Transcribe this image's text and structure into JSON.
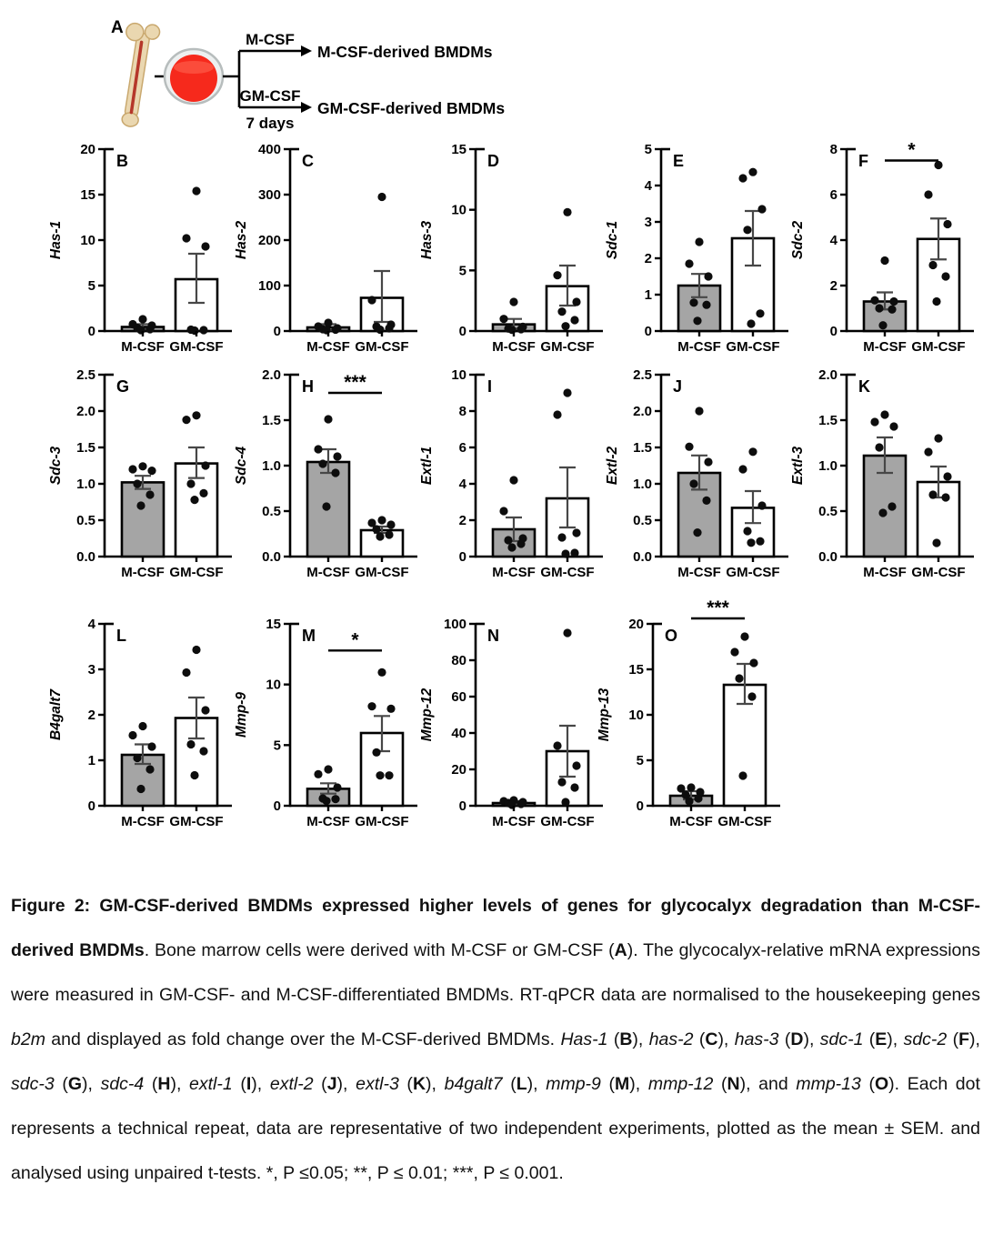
{
  "schematic": {
    "panel_label": "A",
    "arm1": {
      "factor": "M-CSF",
      "result": "M-CSF-derived BMDMs"
    },
    "arm2": {
      "factor": "GM-CSF",
      "duration": "7 days",
      "result": "GM-CSF-derived BMDMs"
    },
    "colors": {
      "medium_red": "#f6291c",
      "dish_rim": "#edf0f0",
      "bone_fill": "#ead7b0",
      "bone_stroke": "#c9a86e",
      "marrow_red": "#b5372a"
    }
  },
  "chart_style": {
    "bar_fill_mcsf": "#a5a5a5",
    "bar_fill_gmcsf": "#ffffff",
    "axis_color": "#000000",
    "error_color": "#474747",
    "dot_color": "#0d0d0d"
  },
  "categories": [
    "M-CSF",
    "GM-CSF"
  ],
  "chart_data": [
    {
      "panel": "B",
      "type": "bar-scatter",
      "ylabel": "Has-1",
      "ylim": [
        0,
        20
      ],
      "yticks": [
        "0",
        "5",
        "10",
        "15",
        "20"
      ],
      "series": [
        {
          "name": "M-CSF",
          "mean": 0.45,
          "sem": [
            0.2,
            0.75
          ],
          "points": [
            1.3,
            0.75,
            0.6,
            0.35,
            0.2,
            0.1
          ]
        },
        {
          "name": "GM-CSF",
          "mean": 5.7,
          "sem": [
            3.1,
            8.5
          ],
          "points": [
            15.4,
            10.2,
            9.3,
            0.15,
            0.1,
            0.05
          ]
        }
      ],
      "significance": null
    },
    {
      "panel": "C",
      "type": "bar-scatter",
      "ylabel": "Has-2",
      "ylim": [
        0,
        400
      ],
      "yticks": [
        "0",
        "100",
        "200",
        "300",
        "400"
      ],
      "series": [
        {
          "name": "M-CSF",
          "mean": 8,
          "sem": [
            2,
            15
          ],
          "points": [
            18,
            10,
            6,
            4,
            3,
            2
          ]
        },
        {
          "name": "GM-CSF",
          "mean": 73,
          "sem": [
            20,
            132
          ],
          "points": [
            295,
            68,
            14,
            10,
            6,
            3
          ]
        }
      ],
      "significance": null
    },
    {
      "panel": "D",
      "type": "bar-scatter",
      "ylabel": "Has-3",
      "ylim": [
        0,
        15
      ],
      "yticks": [
        "0",
        "5",
        "10",
        "15"
      ],
      "series": [
        {
          "name": "M-CSF",
          "mean": 0.55,
          "sem": [
            0.2,
            1.0
          ],
          "points": [
            2.4,
            1.0,
            0.35,
            0.2,
            0.15,
            0.1
          ]
        },
        {
          "name": "GM-CSF",
          "mean": 3.7,
          "sem": [
            2.1,
            5.4
          ],
          "points": [
            9.8,
            4.6,
            2.4,
            1.6,
            0.9,
            0.4
          ]
        }
      ],
      "significance": null
    },
    {
      "panel": "E",
      "type": "bar-scatter",
      "ylabel": "Sdc-1",
      "ylim": [
        0,
        5
      ],
      "yticks": [
        "0",
        "1",
        "2",
        "3",
        "4",
        "5"
      ],
      "series": [
        {
          "name": "M-CSF",
          "mean": 1.25,
          "sem": [
            0.93,
            1.57
          ],
          "points": [
            2.45,
            1.85,
            1.5,
            0.78,
            0.72,
            0.28
          ]
        },
        {
          "name": "GM-CSF",
          "mean": 2.55,
          "sem": [
            1.8,
            3.3
          ],
          "points": [
            4.37,
            4.2,
            3.35,
            2.78,
            0.48,
            0.2
          ]
        }
      ],
      "significance": null
    },
    {
      "panel": "F",
      "type": "bar-scatter",
      "ylabel": "Sdc-2",
      "ylim": [
        0,
        8
      ],
      "yticks": [
        "0",
        "2",
        "4",
        "6",
        "8"
      ],
      "series": [
        {
          "name": "M-CSF",
          "mean": 1.3,
          "sem": [
            0.95,
            1.7
          ],
          "points": [
            3.1,
            1.35,
            1.3,
            1.0,
            0.95,
            0.25
          ]
        },
        {
          "name": "GM-CSF",
          "mean": 4.05,
          "sem": [
            3.15,
            4.95
          ],
          "points": [
            7.3,
            6.0,
            4.7,
            2.9,
            2.4,
            1.3
          ]
        }
      ],
      "significance": {
        "label": "*",
        "y": 7.5
      }
    },
    {
      "panel": "G",
      "type": "bar-scatter",
      "ylabel": "Sdc-3",
      "ylim": [
        0,
        2.5
      ],
      "yticks": [
        "0.0",
        "0.5",
        "1.0",
        "1.5",
        "2.0",
        "2.5"
      ],
      "series": [
        {
          "name": "M-CSF",
          "mean": 1.02,
          "sem": [
            0.93,
            1.11
          ],
          "points": [
            1.24,
            1.2,
            1.18,
            1.0,
            0.85,
            0.7
          ]
        },
        {
          "name": "GM-CSF",
          "mean": 1.28,
          "sem": [
            1.08,
            1.5
          ],
          "points": [
            1.94,
            1.88,
            1.25,
            1.0,
            0.87,
            0.78
          ]
        }
      ],
      "significance": null
    },
    {
      "panel": "H",
      "type": "bar-scatter",
      "ylabel": "Sdc-4",
      "ylim": [
        0,
        2.0
      ],
      "yticks": [
        "0.0",
        "0.5",
        "1.0",
        "1.5",
        "2.0"
      ],
      "series": [
        {
          "name": "M-CSF",
          "mean": 1.04,
          "sem": [
            0.92,
            1.18
          ],
          "points": [
            1.51,
            1.18,
            1.1,
            1.02,
            0.92,
            0.55
          ]
        },
        {
          "name": "GM-CSF",
          "mean": 0.29,
          "sem": [
            0.26,
            0.33
          ],
          "points": [
            0.4,
            0.37,
            0.35,
            0.3,
            0.24,
            0.22
          ]
        }
      ],
      "significance": {
        "label": "***",
        "y": 1.8
      }
    },
    {
      "panel": "I",
      "type": "bar-scatter",
      "ylabel": "Extl-1",
      "ylim": [
        0,
        10
      ],
      "yticks": [
        "0",
        "2",
        "4",
        "6",
        "8",
        "10"
      ],
      "series": [
        {
          "name": "M-CSF",
          "mean": 1.5,
          "sem": [
            0.85,
            2.15
          ],
          "points": [
            4.2,
            2.5,
            1.0,
            0.9,
            0.7,
            0.5
          ]
        },
        {
          "name": "GM-CSF",
          "mean": 3.2,
          "sem": [
            1.6,
            4.9
          ],
          "points": [
            9.0,
            7.8,
            1.3,
            1.05,
            0.2,
            0.15
          ]
        }
      ],
      "significance": null
    },
    {
      "panel": "J",
      "type": "bar-scatter",
      "ylabel": "Extl-2",
      "ylim": [
        0,
        2.5
      ],
      "yticks": [
        "0.0",
        "0.5",
        "1.0",
        "1.5",
        "2.0",
        "2.5"
      ],
      "series": [
        {
          "name": "M-CSF",
          "mean": 1.15,
          "sem": [
            0.92,
            1.39
          ],
          "points": [
            2.0,
            1.51,
            1.3,
            1.0,
            0.77,
            0.33
          ]
        },
        {
          "name": "GM-CSF",
          "mean": 0.67,
          "sem": [
            0.46,
            0.9
          ],
          "points": [
            1.44,
            1.2,
            0.7,
            0.35,
            0.21,
            0.19
          ]
        }
      ],
      "significance": null
    },
    {
      "panel": "K",
      "type": "bar-scatter",
      "ylabel": "Extl-3",
      "ylim": [
        0,
        2.0
      ],
      "yticks": [
        "0.0",
        "0.5",
        "1.0",
        "1.5",
        "2.0"
      ],
      "series": [
        {
          "name": "M-CSF",
          "mean": 1.11,
          "sem": [
            0.92,
            1.31
          ],
          "points": [
            1.56,
            1.48,
            1.43,
            1.2,
            0.55,
            0.48
          ]
        },
        {
          "name": "GM-CSF",
          "mean": 0.82,
          "sem": [
            0.65,
            0.99
          ],
          "points": [
            1.3,
            1.15,
            0.88,
            0.68,
            0.65,
            0.15
          ]
        }
      ],
      "significance": null
    },
    {
      "panel": "L",
      "type": "bar-scatter",
      "ylabel": "B4galt7",
      "ylim": [
        0,
        4
      ],
      "yticks": [
        "0",
        "1",
        "2",
        "3",
        "4"
      ],
      "series": [
        {
          "name": "M-CSF",
          "mean": 1.12,
          "sem": [
            0.92,
            1.35
          ],
          "points": [
            1.75,
            1.55,
            1.3,
            1.05,
            0.8,
            0.37
          ]
        },
        {
          "name": "GM-CSF",
          "mean": 1.93,
          "sem": [
            1.48,
            2.38
          ],
          "points": [
            3.43,
            2.93,
            2.1,
            1.35,
            1.2,
            0.67
          ]
        }
      ],
      "significance": null
    },
    {
      "panel": "M",
      "type": "bar-scatter",
      "ylabel": "Mmp-9",
      "ylim": [
        0,
        15
      ],
      "yticks": [
        "0",
        "5",
        "10",
        "15"
      ],
      "series": [
        {
          "name": "M-CSF",
          "mean": 1.4,
          "sem": [
            1.0,
            1.85
          ],
          "points": [
            3.0,
            2.6,
            1.5,
            0.6,
            0.55,
            0.4
          ]
        },
        {
          "name": "GM-CSF",
          "mean": 6.0,
          "sem": [
            4.5,
            7.4
          ],
          "points": [
            11.0,
            8.2,
            8.0,
            4.4,
            2.5,
            2.5
          ]
        }
      ],
      "significance": {
        "label": "*",
        "y": 12.8
      }
    },
    {
      "panel": "N",
      "type": "bar-scatter",
      "ylabel": "Mmp-12",
      "ylim": [
        0,
        100
      ],
      "yticks": [
        "0",
        "20",
        "40",
        "60",
        "80",
        "100"
      ],
      "series": [
        {
          "name": "M-CSF",
          "mean": 1.5,
          "sem": [
            0.8,
            2.5
          ],
          "points": [
            3,
            2.5,
            2,
            1.5,
            1,
            0.5
          ]
        },
        {
          "name": "GM-CSF",
          "mean": 30,
          "sem": [
            16,
            44
          ],
          "points": [
            95,
            33,
            22,
            13,
            10,
            2
          ]
        }
      ],
      "significance": null
    },
    {
      "panel": "O",
      "type": "bar-scatter",
      "ylabel": "Mmp-13",
      "ylim": [
        0,
        20
      ],
      "yticks": [
        "0",
        "5",
        "10",
        "15",
        "20"
      ],
      "series": [
        {
          "name": "M-CSF",
          "mean": 1.1,
          "sem": [
            0.7,
            1.6
          ],
          "points": [
            2.0,
            1.9,
            1.5,
            1.2,
            0.8,
            0.5
          ]
        },
        {
          "name": "GM-CSF",
          "mean": 13.3,
          "sem": [
            11.2,
            15.6
          ],
          "points": [
            18.6,
            16.9,
            15.7,
            14.0,
            12.0,
            3.3
          ]
        }
      ],
      "significance": {
        "label": "***",
        "y": 20.6
      }
    }
  ],
  "caption": {
    "segments": [
      {
        "t": "Figure 2: GM-CSF-derived BMDMs expressed higher levels of genes for glycocalyx degradation than M-CSF-derived BMDMs",
        "b": true
      },
      {
        "t": ". Bone marrow cells were derived with M-CSF or GM-CSF ("
      },
      {
        "t": "A",
        "b": true
      },
      {
        "t": "). The glycocalyx-relative mRNA expressions were measured in GM-CSF- and M-CSF-differentiated BMDMs. RT-qPCR data are normalised to the housekeeping genes "
      },
      {
        "t": "b2m",
        "i": true
      },
      {
        "t": " and displayed as fold change over the M-CSF-derived BMDMs. "
      },
      {
        "t": "Has-1",
        "i": true
      },
      {
        "t": " ("
      },
      {
        "t": "B",
        "b": true
      },
      {
        "t": "), "
      },
      {
        "t": "has-2",
        "i": true
      },
      {
        "t": " ("
      },
      {
        "t": "C",
        "b": true
      },
      {
        "t": "), "
      },
      {
        "t": "has-3",
        "i": true
      },
      {
        "t": " ("
      },
      {
        "t": "D",
        "b": true
      },
      {
        "t": "), "
      },
      {
        "t": "sdc-1",
        "i": true
      },
      {
        "t": " ("
      },
      {
        "t": "E",
        "b": true
      },
      {
        "t": "), "
      },
      {
        "t": "sdc-2",
        "i": true
      },
      {
        "t": " ("
      },
      {
        "t": "F",
        "b": true
      },
      {
        "t": "), "
      },
      {
        "t": "sdc-3",
        "i": true
      },
      {
        "t": " ("
      },
      {
        "t": "G",
        "b": true
      },
      {
        "t": "), "
      },
      {
        "t": "sdc-4",
        "i": true
      },
      {
        "t": " ("
      },
      {
        "t": "H",
        "b": true
      },
      {
        "t": "), "
      },
      {
        "t": "extl-1",
        "i": true
      },
      {
        "t": " ("
      },
      {
        "t": "I",
        "b": true
      },
      {
        "t": "), "
      },
      {
        "t": "extl-2",
        "i": true
      },
      {
        "t": " ("
      },
      {
        "t": "J",
        "b": true
      },
      {
        "t": "), "
      },
      {
        "t": "extl-3",
        "i": true
      },
      {
        "t": " ("
      },
      {
        "t": "K",
        "b": true
      },
      {
        "t": "), "
      },
      {
        "t": "b4galt7",
        "i": true
      },
      {
        "t": " ("
      },
      {
        "t": "L",
        "b": true
      },
      {
        "t": "), "
      },
      {
        "t": "mmp-9",
        "i": true
      },
      {
        "t": " ("
      },
      {
        "t": "M",
        "b": true
      },
      {
        "t": "), "
      },
      {
        "t": "mmp-12",
        "i": true
      },
      {
        "t": " ("
      },
      {
        "t": "N",
        "b": true
      },
      {
        "t": "), and "
      },
      {
        "t": "mmp-13",
        "i": true
      },
      {
        "t": " ("
      },
      {
        "t": "O",
        "b": true
      },
      {
        "t": "). Each dot represents a technical repeat, data are representative of two independent experiments, plotted as the mean ± SEM. and analysed using unpaired t-tests. *, P ≤0.05; **, P ≤ 0.01; ***, P ≤ 0.001."
      }
    ]
  }
}
